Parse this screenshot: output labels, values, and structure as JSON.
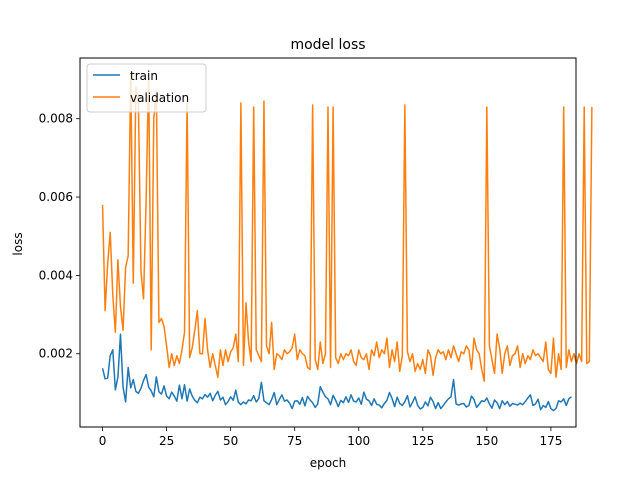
{
  "chart_data": {
    "type": "line",
    "title": "model loss",
    "xlabel": "epoch",
    "ylabel": "loss",
    "xlim": [
      -8.8,
      184.8
    ],
    "ylim": [
      0.00013,
      0.00955
    ],
    "xticks": [
      0,
      25,
      50,
      75,
      100,
      125,
      150,
      175
    ],
    "xtick_labels": [
      "0",
      "25",
      "50",
      "75",
      "100",
      "125",
      "150",
      "175"
    ],
    "yticks": [
      0.002,
      0.004,
      0.006,
      0.008
    ],
    "ytick_labels": [
      "0.002",
      "0.004",
      "0.006",
      "0.008"
    ],
    "grid": false,
    "legend": {
      "placement": "top-left",
      "entries": [
        "train",
        "validation"
      ]
    },
    "colors": {
      "train": "#1f77b4",
      "validation": "#ff7f0e"
    },
    "series": [
      {
        "name": "train",
        "x_start": 0,
        "x_step": 1,
        "values": [
          0.00163,
          0.00136,
          0.00138,
          0.00195,
          0.0021,
          0.00108,
          0.0014,
          0.0025,
          0.00115,
          0.00077,
          0.00165,
          0.00113,
          0.00134,
          0.00104,
          0.00099,
          0.00112,
          0.00132,
          0.00147,
          0.00115,
          0.00105,
          0.0009,
          0.00141,
          0.00103,
          0.00097,
          0.00118,
          0.00092,
          0.00085,
          0.00102,
          0.00092,
          0.00079,
          0.0012,
          0.00085,
          0.00121,
          0.00079,
          0.0011,
          0.00092,
          0.00081,
          0.00075,
          0.00089,
          0.00085,
          0.00096,
          0.00089,
          0.00099,
          0.0008,
          0.00094,
          0.00104,
          0.00082,
          0.00089,
          0.0007,
          0.00078,
          0.0009,
          0.00081,
          0.00107,
          0.00076,
          0.0007,
          0.00077,
          0.00072,
          0.00082,
          0.0008,
          0.00093,
          0.00077,
          0.00086,
          0.00127,
          0.0008,
          0.00075,
          0.0007,
          0.00083,
          0.00101,
          0.0007,
          0.00083,
          0.00095,
          0.00079,
          0.00082,
          0.00074,
          0.0006,
          0.00079,
          0.0008,
          0.00071,
          0.00088,
          0.00067,
          0.00091,
          0.00082,
          0.00075,
          0.00063,
          0.00072,
          0.00116,
          0.00102,
          0.0009,
          0.00085,
          0.0007,
          0.00094,
          0.00081,
          0.00065,
          0.00081,
          0.00075,
          0.0009,
          0.00076,
          0.00095,
          0.00079,
          0.00077,
          0.00087,
          0.00071,
          0.00102,
          0.00084,
          0.0008,
          0.00068,
          0.00085,
          0.00071,
          0.00069,
          0.00062,
          0.00073,
          0.00081,
          0.00101,
          0.00086,
          0.00065,
          0.00089,
          0.00073,
          0.00068,
          0.00078,
          0.00093,
          0.00064,
          0.00076,
          0.0009,
          0.00068,
          0.00059,
          0.00063,
          0.00077,
          0.00067,
          0.00089,
          0.00078,
          0.0006,
          0.00075,
          0.0006,
          0.00068,
          0.00077,
          0.00085,
          0.0009,
          0.00134,
          0.00072,
          0.00069,
          0.00072,
          0.00073,
          0.00064,
          0.00068,
          0.00092,
          0.00083,
          0.00063,
          0.00071,
          0.0008,
          0.00078,
          0.00087,
          0.00072,
          0.00061,
          0.00082,
          0.00075,
          0.0006,
          0.0008,
          0.0007,
          0.00078,
          0.00066,
          0.00073,
          0.00071,
          0.00069,
          0.00074,
          0.0007,
          0.00078,
          0.00087,
          0.00095,
          0.00068,
          0.00072,
          0.00084,
          0.00057,
          0.00068,
          0.00063,
          0.00078,
          0.0006,
          0.00055,
          0.0006,
          0.0008,
          0.00077,
          0.00085,
          0.00068,
          0.00085,
          0.0009
        ]
      },
      {
        "name": "validation",
        "x_start": 0,
        "x_step": 1,
        "values": [
          0.0058,
          0.0031,
          0.0043,
          0.0051,
          0.0035,
          0.00255,
          0.0044,
          0.0032,
          0.0026,
          0.0042,
          0.0045,
          0.0092,
          0.0038,
          0.0088,
          0.0084,
          0.0041,
          0.0034,
          0.0059,
          0.0092,
          0.0021,
          0.008,
          0.0087,
          0.0028,
          0.0029,
          0.0027,
          0.0022,
          0.00165,
          0.002,
          0.0017,
          0.00195,
          0.00175,
          0.0021,
          0.00255,
          0.00845,
          0.0019,
          0.00215,
          0.0026,
          0.0031,
          0.002,
          0.002,
          0.0029,
          0.0021,
          0.00165,
          0.002,
          0.0017,
          0.0014,
          0.0021,
          0.0017,
          0.0021,
          0.0018,
          0.00205,
          0.00215,
          0.0025,
          0.0018,
          0.0084,
          0.0017,
          0.0033,
          0.0023,
          0.0018,
          0.0083,
          0.0021,
          0.00195,
          0.0018,
          0.00845,
          0.0022,
          0.002,
          0.0028,
          0.0016,
          0.002,
          0.00195,
          0.00185,
          0.0021,
          0.002,
          0.00205,
          0.00215,
          0.0025,
          0.00185,
          0.0021,
          0.002,
          0.00195,
          0.00165,
          0.0016,
          0.00835,
          0.00185,
          0.0016,
          0.0023,
          0.00175,
          0.002,
          0.0083,
          0.00165,
          0.0083,
          0.0019,
          0.00175,
          0.002,
          0.00185,
          0.002,
          0.00195,
          0.0021,
          0.0018,
          0.0017,
          0.0021,
          0.0019,
          0.00185,
          0.002,
          0.0016,
          0.0021,
          0.00195,
          0.0023,
          0.0019,
          0.0021,
          0.002,
          0.0024,
          0.00165,
          0.0021,
          0.0018,
          0.0023,
          0.00155,
          0.00195,
          0.00835,
          0.00205,
          0.0018,
          0.002,
          0.00155,
          0.00175,
          0.0016,
          0.00185,
          0.0015,
          0.0021,
          0.00195,
          0.00145,
          0.0019,
          0.0021,
          0.002,
          0.00205,
          0.00185,
          0.0021,
          0.0019,
          0.0022,
          0.002,
          0.0018,
          0.00205,
          0.002,
          0.0022,
          0.0021,
          0.0016,
          0.0024,
          0.0021,
          0.002,
          0.0016,
          0.0013,
          0.0083,
          0.0022,
          0.00185,
          0.0015,
          0.0025,
          0.00215,
          0.0015,
          0.002,
          0.0022,
          0.0017,
          0.00195,
          0.002,
          0.0022,
          0.00165,
          0.002,
          0.00175,
          0.00195,
          0.00185,
          0.0021,
          0.00195,
          0.002,
          0.0019,
          0.0018,
          0.0023,
          0.0016,
          0.0015,
          0.0024,
          0.0014,
          0.002,
          0.0016,
          0.0083,
          0.00165,
          0.0021,
          0.0018,
          0.002,
          0.00175,
          0.002,
          0.0018,
          0.0083,
          0.00175,
          0.0018,
          0.0083
        ]
      }
    ]
  }
}
